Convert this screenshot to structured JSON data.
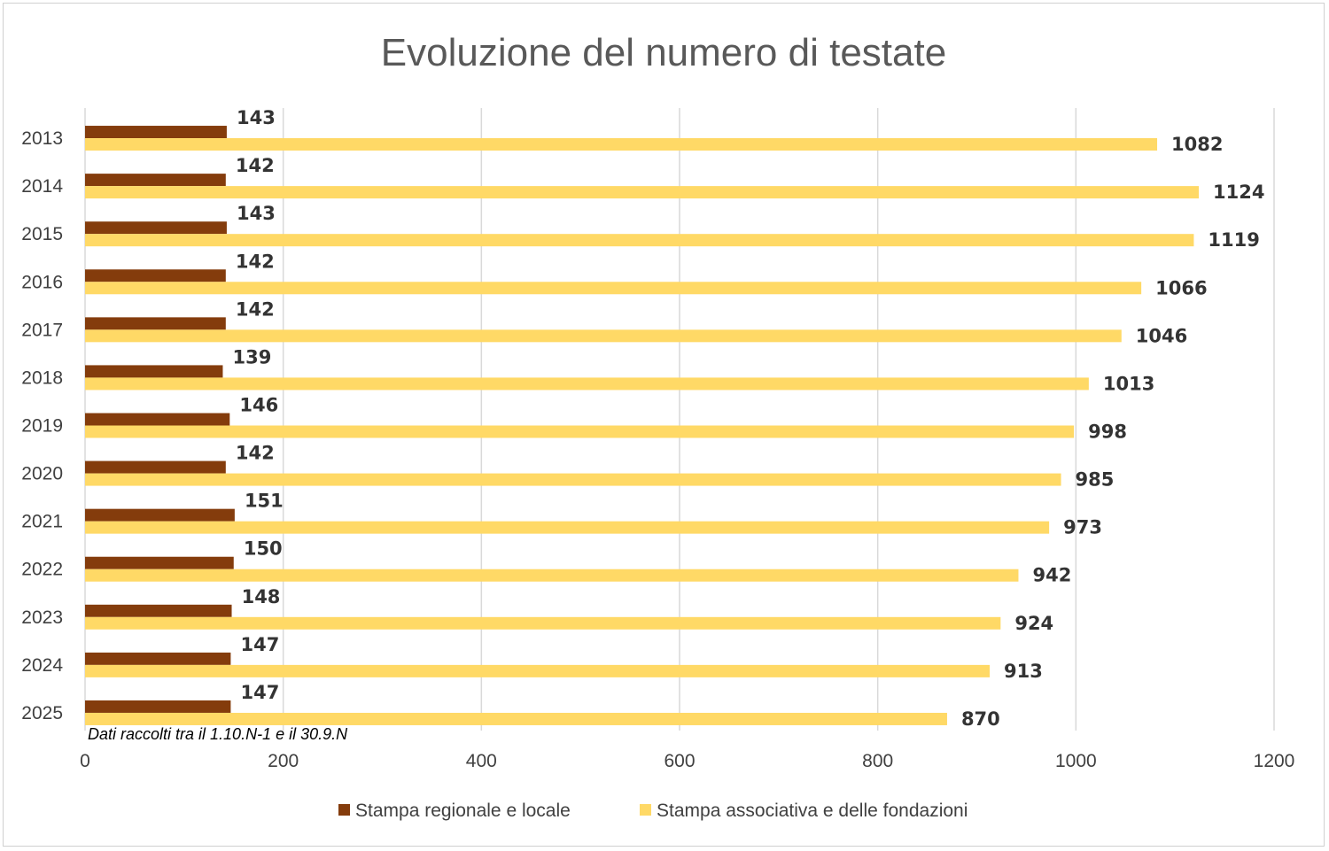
{
  "chart_data": {
    "type": "bar",
    "orientation": "horizontal",
    "title": "Evoluzione del numero di testate",
    "categories": [
      "2013",
      "2014",
      "2015",
      "2016",
      "2017",
      "2018",
      "2019",
      "2020",
      "2021",
      "2022",
      "2023",
      "2024",
      "2025"
    ],
    "series": [
      {
        "name": "Stampa regionale e locale",
        "color": "#843C0C",
        "values": [
          143,
          142,
          143,
          142,
          142,
          139,
          146,
          142,
          151,
          150,
          148,
          147,
          147
        ]
      },
      {
        "name": "Stampa associativa e delle fondazioni",
        "color": "#FFD966",
        "values": [
          1082,
          1124,
          1119,
          1066,
          1046,
          1013,
          998,
          985,
          973,
          942,
          924,
          913,
          870
        ]
      }
    ],
    "xlim": [
      0,
      1200
    ],
    "xticks": [
      "0",
      "200",
      "400",
      "600",
      "800",
      "1000",
      "1200"
    ],
    "grid": true,
    "legend_position": "bottom",
    "annotation": "Dati raccolti tra il 1.10.N-1 e il 30.9.N"
  }
}
